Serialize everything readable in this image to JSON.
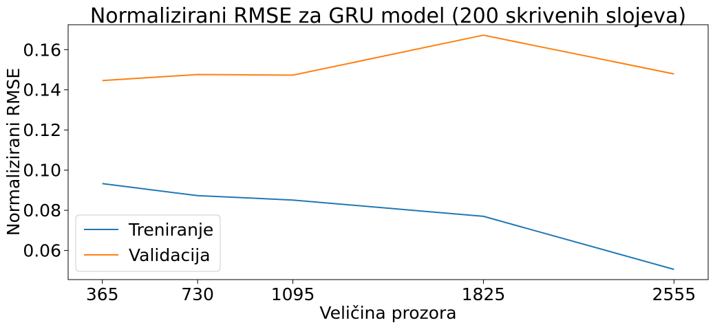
{
  "chart_data": {
    "type": "line",
    "title": "Normalizirani RMSE za GRU model (200 skrivenih slojeva)",
    "xlabel": "Veličina prozora",
    "ylabel": "Normalizirani RMSE",
    "x": [
      365,
      730,
      1095,
      1825,
      2555
    ],
    "x_tick_labels": [
      "365",
      "730",
      "1095",
      "1825",
      "2555"
    ],
    "xlim": [
      234,
      2686
    ],
    "ylim": [
      0.0455,
      0.1724
    ],
    "y_ticks": [
      0.06,
      0.08,
      0.1,
      0.12,
      0.14,
      0.16
    ],
    "y_tick_labels": [
      "0.06",
      "0.08",
      "0.10",
      "0.12",
      "0.14",
      "0.16"
    ],
    "grid": false,
    "legend_position": "lower-left",
    "series": [
      {
        "name": "Treniranje",
        "color": "#1f77b4",
        "values": [
          0.0933,
          0.0873,
          0.0851,
          0.077,
          0.0506
        ]
      },
      {
        "name": "Validacija",
        "color": "#ff7f0e",
        "values": [
          0.1446,
          0.1476,
          0.1473,
          0.1672,
          0.1479
        ]
      }
    ]
  }
}
